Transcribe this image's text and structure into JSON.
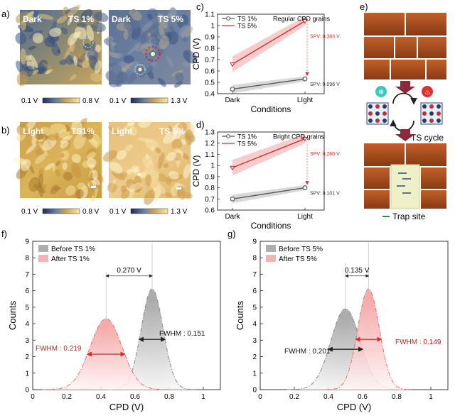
{
  "panel_labels": {
    "a": "a)",
    "b": "b)",
    "c": "c)",
    "d": "d)",
    "e": "e)",
    "f": "f)",
    "g": "g)"
  },
  "afm": {
    "tl": {
      "cond": "Dark",
      "ts": "TS 1%",
      "cmin": "0.1 V",
      "cmax": "0.8 V"
    },
    "tr": {
      "cond": "Dark",
      "ts": "TS 5%",
      "cmin": "0.1 V",
      "cmax": "1.3 V"
    },
    "bl": {
      "cond": "Light",
      "ts": "TS1%",
      "cmin": "0.1 V",
      "cmax": "0.8 V"
    },
    "br": {
      "cond": "Light",
      "ts": "TS 5%",
      "cmin": "0.1 V",
      "cmax": "1.3 V"
    }
  },
  "schematic": {
    "cycle_label": "TS cycle",
    "trap_label": "Trap site"
  },
  "colors": {
    "ts1": "#555555",
    "ts5": "#d03030",
    "ts1_band": "#c9c9c9",
    "ts5_band": "#f2b6b6"
  },
  "chart_data": [
    {
      "id": "c",
      "type": "line",
      "title": "Regular CPD grains",
      "xlabel": "Conditions",
      "ylabel": "CPD (V)",
      "categories": [
        "Dark",
        "LIght"
      ],
      "ylim": [
        0.4,
        1.1
      ],
      "yticks": [
        "0.4",
        "0.5",
        "0.6",
        "0.7",
        "0.8",
        "0.9",
        "1",
        "1.1"
      ],
      "series": [
        {
          "name": "TS 1%",
          "values": [
            0.44,
            0.53
          ]
        },
        {
          "name": "TS 5%",
          "values": [
            0.66,
            1.04
          ]
        }
      ],
      "annotations": [
        {
          "text": "SPV: 0.383 V",
          "color": "#d03030"
        },
        {
          "text": "SPV: 0.096 V",
          "color": "#333333"
        }
      ]
    },
    {
      "id": "d",
      "type": "line",
      "title": "Bright CPD grains",
      "xlabel": "Conditions",
      "ylabel": "CPD (V)",
      "categories": [
        "Dark",
        "Light"
      ],
      "ylim": [
        0.6,
        1.3
      ],
      "yticks": [
        "0.6",
        "0.7",
        "0.8",
        "0.9",
        "1",
        "1.1",
        "1.2",
        "1.3"
      ],
      "series": [
        {
          "name": "TS 1%",
          "values": [
            0.7,
            0.8
          ]
        },
        {
          "name": "TS 5%",
          "values": [
            0.98,
            1.24
          ]
        }
      ],
      "annotations": [
        {
          "text": "SPV: 0.260 V",
          "color": "#d03030"
        },
        {
          "text": "SPV: 0.101 V",
          "color": "#333333"
        }
      ]
    },
    {
      "id": "f",
      "type": "area",
      "xlabel": "CPD (V)",
      "ylabel": "Counts",
      "xlim": [
        0,
        1.1
      ],
      "ylim": [
        0,
        9
      ],
      "xticks": [
        "0",
        "0.2",
        "0.4",
        "0.6",
        "0.8",
        "1"
      ],
      "yticks": [
        "0",
        "1",
        "2",
        "3",
        "4",
        "5",
        "6",
        "7",
        "8",
        "9"
      ],
      "series": [
        {
          "name": "Before TS 1%",
          "center": 0.7,
          "fwhm": 0.151,
          "peak": 6.1
        },
        {
          "name": "After TS 1%",
          "center": 0.43,
          "fwhm": 0.219,
          "peak": 4.3
        }
      ],
      "annotations": [
        {
          "text": "0.270 V"
        },
        {
          "text": "FWHM : 0.151"
        },
        {
          "text": "FWHM : 0.219"
        }
      ]
    },
    {
      "id": "g",
      "type": "area",
      "xlabel": "CPD (V)",
      "ylabel": "Counts",
      "xlim": [
        0,
        1.1
      ],
      "ylim": [
        0,
        9
      ],
      "xticks": [
        "0",
        "0.2",
        "0.4",
        "0.6",
        "0.8",
        "1"
      ],
      "yticks": [
        "0",
        "1",
        "2",
        "3",
        "4",
        "5",
        "6",
        "7",
        "8",
        "9"
      ],
      "series": [
        {
          "name": "Before TS 5%",
          "center": 0.5,
          "fwhm": 0.201,
          "peak": 4.9
        },
        {
          "name": "After TS 5%",
          "center": 0.635,
          "fwhm": 0.149,
          "peak": 6.1
        }
      ],
      "annotations": [
        {
          "text": "0.135 V"
        },
        {
          "text": "FWHM : 0.201"
        },
        {
          "text": "FWHM : 0.149"
        }
      ]
    }
  ]
}
